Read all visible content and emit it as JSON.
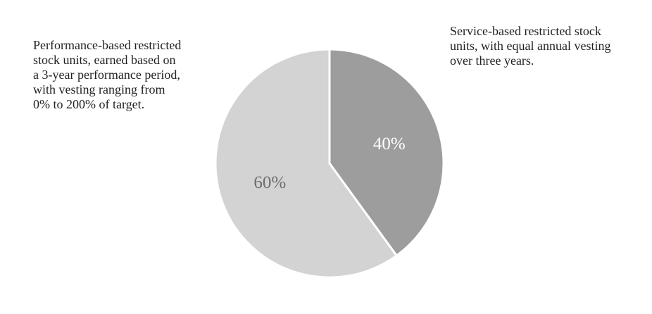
{
  "chart_data": {
    "type": "pie",
    "slices": [
      {
        "label": "40%",
        "value": 40,
        "color": "#9d9d9d",
        "label_color": "#ffffff",
        "description": "Service-based restricted stock\nunits, with equal annual vesting\nover three years."
      },
      {
        "label": "60%",
        "value": 60,
        "color": "#d3d3d3",
        "label_color": "#6d6d6d",
        "description": "Performance-based restricted\nstock units, earned based on\na 3-year performance period,\nwith vesting ranging from\n0% to 200% of target."
      }
    ],
    "start_angle": "12 o'clock",
    "direction": "clockwise",
    "slice_separator_color": "#ffffff"
  }
}
